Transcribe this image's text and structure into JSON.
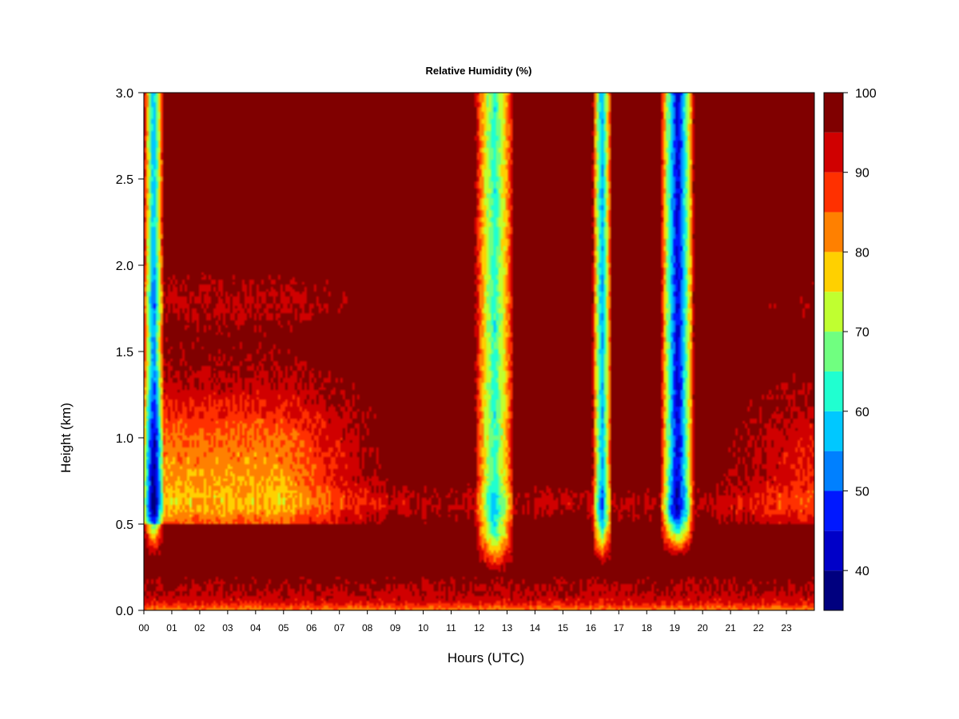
{
  "chart_data": {
    "type": "heatmap",
    "title": "Relative Humidity (%)",
    "xlabel": "Hours (UTC)",
    "ylabel": "Height (km)",
    "xlim": [
      0,
      24
    ],
    "ylim": [
      0,
      3
    ],
    "x_ticks": [
      "00",
      "01",
      "02",
      "03",
      "04",
      "05",
      "06",
      "07",
      "08",
      "09",
      "10",
      "11",
      "12",
      "13",
      "14",
      "15",
      "16",
      "17",
      "18",
      "19",
      "20",
      "21",
      "22",
      "23"
    ],
    "y_ticks": [
      "0.0",
      "0.5",
      "1.0",
      "1.5",
      "2.0",
      "2.5",
      "3.0"
    ],
    "colorbar": {
      "levels": [
        35,
        40,
        45,
        50,
        55,
        60,
        65,
        70,
        75,
        80,
        85,
        90,
        95,
        100
      ],
      "tick_labels": [
        "40",
        "50",
        "60",
        "70",
        "80",
        "90",
        "100"
      ],
      "colors": [
        "#00007f",
        "#0000c8",
        "#0018ff",
        "#0080ff",
        "#00c8ff",
        "#20ffd0",
        "#70ff80",
        "#c0ff30",
        "#ffd000",
        "#ff8000",
        "#ff3000",
        "#d00000",
        "#800000"
      ]
    },
    "features": [
      {
        "description": "dry column",
        "x_center": 0.35,
        "width": 0.35,
        "min_rh": 55,
        "z_range": [
          0.3,
          3.0
        ]
      },
      {
        "description": "dry column",
        "x_center": 12.55,
        "width": 0.7,
        "min_rh": 62,
        "z_range": [
          0.2,
          3.0
        ]
      },
      {
        "description": "dry column",
        "x_center": 16.4,
        "width": 0.35,
        "min_rh": 55,
        "z_range": [
          0.25,
          3.0
        ]
      },
      {
        "description": "dry column",
        "x_center": 19.1,
        "width": 0.6,
        "min_rh": 42,
        "z_range": [
          0.3,
          3.0
        ]
      }
    ]
  }
}
